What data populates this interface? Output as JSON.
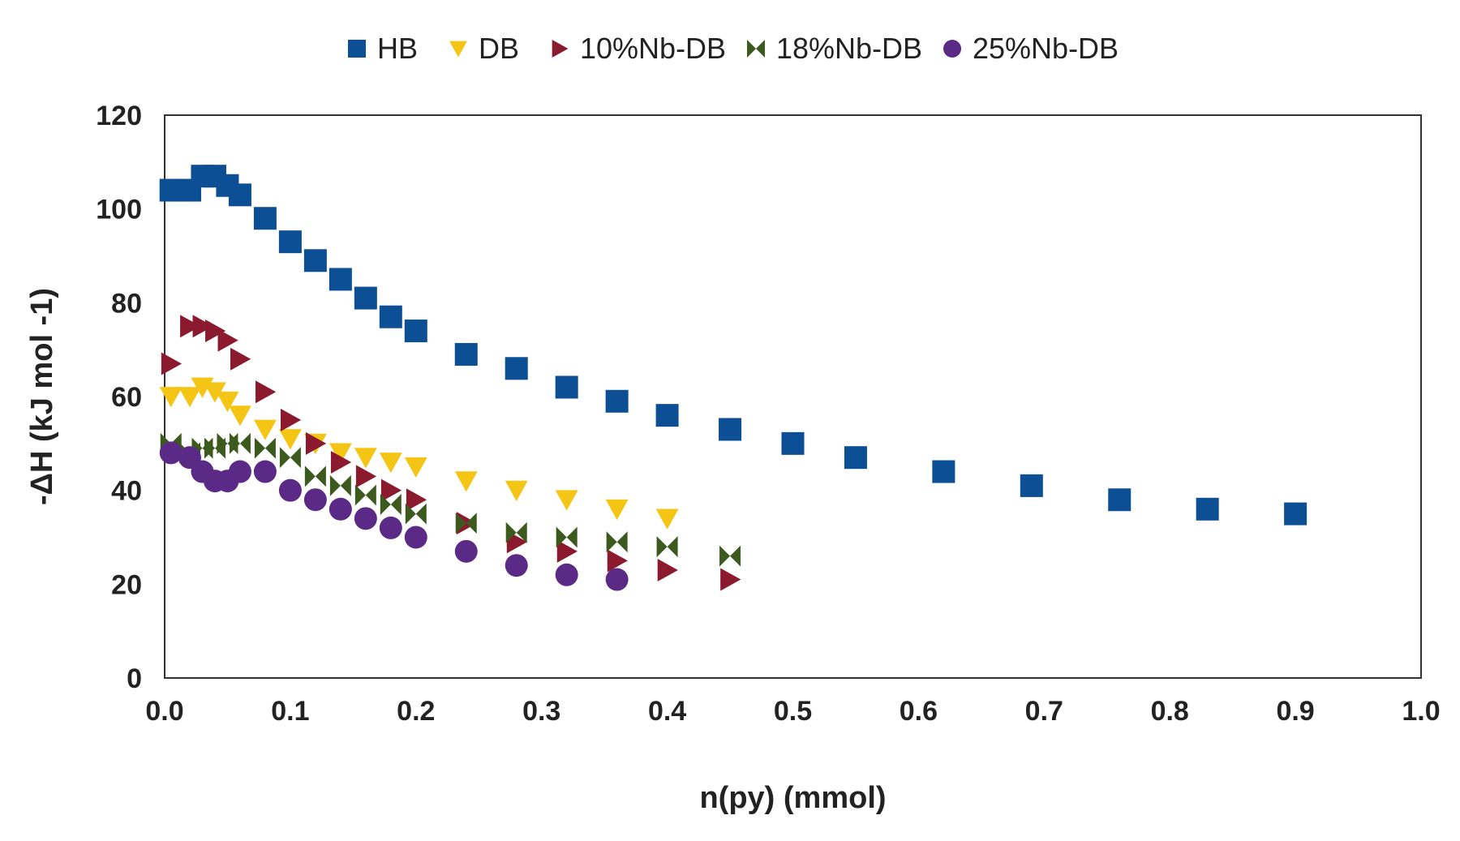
{
  "chart_data": {
    "type": "scatter",
    "title": "",
    "xlabel": "n(py) (mmol)",
    "ylabel": "-ΔH (kJ mol -1)",
    "xlim": [
      0.0,
      1.0
    ],
    "ylim": [
      0,
      120
    ],
    "x_ticks": [
      0.0,
      0.1,
      0.2,
      0.3,
      0.4,
      0.5,
      0.6,
      0.7,
      0.8,
      0.9,
      1.0
    ],
    "x_tick_labels": [
      "0.0",
      "0.1",
      "0.2",
      "0.3",
      "0.4",
      "0.5",
      "0.6",
      "0.7",
      "0.8",
      "0.9",
      "1.0"
    ],
    "y_ticks": [
      0,
      20,
      40,
      60,
      80,
      100,
      120
    ],
    "y_tick_labels": [
      "0",
      "20",
      "40",
      "60",
      "80",
      "100",
      "120"
    ],
    "grid": false,
    "legend_position": "top-center",
    "series": [
      {
        "name": "HB",
        "marker": "square",
        "color": "#0c4f94",
        "x": [
          0.005,
          0.02,
          0.03,
          0.04,
          0.05,
          0.06,
          0.08,
          0.1,
          0.12,
          0.14,
          0.16,
          0.18,
          0.2,
          0.24,
          0.28,
          0.32,
          0.36,
          0.4,
          0.45,
          0.5,
          0.55,
          0.62,
          0.69,
          0.76,
          0.83,
          0.9
        ],
        "y": [
          104,
          104,
          107,
          107,
          105,
          103,
          98,
          93,
          89,
          85,
          81,
          77,
          74,
          69,
          66,
          62,
          59,
          56,
          53,
          50,
          47,
          44,
          41,
          38,
          36,
          35
        ]
      },
      {
        "name": "DB",
        "marker": "triangle-down",
        "color": "#f5c515",
        "x": [
          0.005,
          0.02,
          0.03,
          0.04,
          0.05,
          0.06,
          0.08,
          0.1,
          0.12,
          0.14,
          0.16,
          0.18,
          0.2,
          0.24,
          0.28,
          0.32,
          0.36,
          0.4
        ],
        "y": [
          60,
          60,
          62,
          61,
          59,
          56,
          53,
          51,
          50,
          48,
          47,
          46,
          45,
          42,
          40,
          38,
          36,
          34
        ]
      },
      {
        "name": "10%Nb-DB",
        "marker": "triangle-right",
        "color": "#8b1a2e",
        "x": [
          0.005,
          0.02,
          0.03,
          0.04,
          0.05,
          0.06,
          0.08,
          0.1,
          0.12,
          0.14,
          0.16,
          0.18,
          0.2,
          0.24,
          0.28,
          0.32,
          0.36,
          0.4,
          0.45
        ],
        "y": [
          67,
          75,
          75,
          74,
          72,
          68,
          61,
          55,
          50,
          46,
          43,
          40,
          38,
          33,
          29,
          27,
          25,
          23,
          21
        ]
      },
      {
        "name": "18%Nb-DB",
        "marker": "bowtie",
        "color": "#3c5a1e",
        "x": [
          0.005,
          0.02,
          0.03,
          0.04,
          0.05,
          0.06,
          0.08,
          0.1,
          0.12,
          0.14,
          0.16,
          0.18,
          0.2,
          0.24,
          0.28,
          0.32,
          0.36,
          0.4,
          0.45
        ],
        "y": [
          50,
          48,
          49,
          49,
          50,
          50,
          49,
          47,
          43,
          41,
          39,
          37,
          35,
          33,
          31,
          30,
          29,
          28,
          26
        ]
      },
      {
        "name": "25%Nb-DB",
        "marker": "circle",
        "color": "#5b2a86",
        "x": [
          0.005,
          0.02,
          0.03,
          0.04,
          0.05,
          0.06,
          0.08,
          0.1,
          0.12,
          0.14,
          0.16,
          0.18,
          0.2,
          0.24,
          0.28,
          0.32,
          0.36
        ],
        "y": [
          48,
          47,
          44,
          42,
          42,
          44,
          44,
          40,
          38,
          36,
          34,
          32,
          30,
          27,
          24,
          22,
          21
        ]
      }
    ]
  }
}
